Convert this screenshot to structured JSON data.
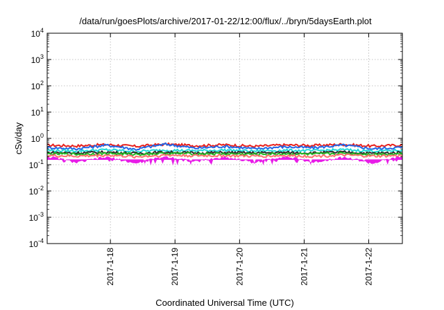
{
  "chart_data": {
    "type": "area",
    "title": "/data/run/goesPlots/archive/2017-01-22/12:00/flux/../bryn/5daysEarth.plot",
    "xlabel": "Coordinated Universal Time (UTC)",
    "ylabel": "cSv/day",
    "yscale": "log",
    "ylim": [
      0.0001,
      10000
    ],
    "y_ticks": [
      {
        "value": 0.0001,
        "base": "10",
        "exp": "-4"
      },
      {
        "value": 0.001,
        "base": "10",
        "exp": "-3"
      },
      {
        "value": 0.01,
        "base": "10",
        "exp": "-2"
      },
      {
        "value": 0.1,
        "base": "10",
        "exp": "-1"
      },
      {
        "value": 1,
        "base": "10",
        "exp": "0"
      },
      {
        "value": 10,
        "base": "10",
        "exp": "1"
      },
      {
        "value": 100,
        "base": "10",
        "exp": "2"
      },
      {
        "value": 1000,
        "base": "10",
        "exp": "3"
      },
      {
        "value": 10000,
        "base": "10",
        "exp": "4"
      }
    ],
    "x_ticks": [
      "2017-1-18",
      "2017-1-19",
      "2017-1-20",
      "2017-1-21",
      "2017-1-22"
    ],
    "xlim": [
      "2017-01-17T00:30",
      "2017-01-22T12:30"
    ],
    "grid": true,
    "series": [
      {
        "color": "#e8201c",
        "level": 0.55,
        "values": [
          0.55,
          0.52,
          0.58,
          0.5,
          0.6,
          0.53,
          0.57,
          0.5,
          0.56,
          0.54,
          0.59,
          0.51,
          0.56
        ]
      },
      {
        "color": "#2266e6",
        "level": 0.45,
        "values": [
          0.45,
          0.4,
          0.55,
          0.38,
          0.6,
          0.42,
          0.5,
          0.4,
          0.48,
          0.44,
          0.55,
          0.4,
          0.46
        ]
      },
      {
        "color": "#20d8d8",
        "level": 0.35,
        "values": [
          0.35,
          0.33,
          0.37,
          0.32,
          0.36,
          0.34,
          0.36,
          0.33,
          0.35,
          0.34,
          0.37,
          0.33,
          0.35
        ]
      },
      {
        "color": "#2a2a2a",
        "level": 0.29,
        "values": [
          0.29,
          0.28,
          0.3,
          0.27,
          0.3,
          0.28,
          0.29,
          0.28,
          0.29,
          0.28,
          0.3,
          0.27,
          0.29
        ]
      },
      {
        "color": "#22b822",
        "level": 0.26,
        "values": [
          0.26,
          0.25,
          0.27,
          0.25,
          0.27,
          0.26,
          0.26,
          0.25,
          0.26,
          0.25,
          0.27,
          0.25,
          0.26
        ]
      },
      {
        "color": "#ff7070",
        "level": 0.22,
        "values": [
          0.22,
          0.21,
          0.23,
          0.2,
          0.23,
          0.22,
          0.22,
          0.21,
          0.22,
          0.21,
          0.23,
          0.21,
          0.22
        ]
      },
      {
        "color": "#e81ce8",
        "level": 0.2,
        "min": 0.1,
        "values": [
          0.2,
          0.12,
          0.19,
          0.11,
          0.2,
          0.13,
          0.19,
          0.12,
          0.2,
          0.12,
          0.19,
          0.11,
          0.2
        ]
      }
    ]
  }
}
